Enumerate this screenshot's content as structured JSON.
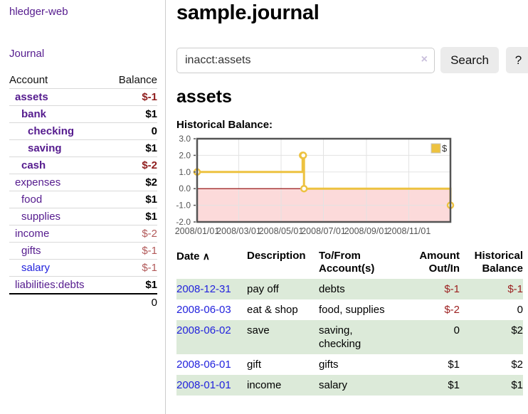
{
  "app": {
    "brand": "hledger-web"
  },
  "sidebar": {
    "nav_journal": "Journal",
    "table": {
      "account_header": "Account",
      "balance_header": "Balance",
      "accounts": [
        {
          "name": "assets",
          "balance": "$-1"
        },
        {
          "name": "bank",
          "balance": "$1"
        },
        {
          "name": "checking",
          "balance": "0"
        },
        {
          "name": "saving",
          "balance": "$1"
        },
        {
          "name": "cash",
          "balance": "$-2"
        },
        {
          "name": "expenses",
          "balance": "$2"
        },
        {
          "name": "food",
          "balance": "$1"
        },
        {
          "name": "supplies",
          "balance": "$1"
        },
        {
          "name": "income",
          "balance": "$-2"
        },
        {
          "name": "gifts",
          "balance": "$-1"
        },
        {
          "name": "salary",
          "balance": "$-1"
        },
        {
          "name": "liabilities:debts",
          "balance": "$1"
        }
      ],
      "total": "0"
    }
  },
  "main": {
    "title": "sample.journal",
    "search": {
      "value": "inacct:assets",
      "clear_icon": "×",
      "search_button": "Search",
      "help_button": "?"
    },
    "account_heading": "assets",
    "chart_label": "Historical Balance:"
  },
  "chart_data": {
    "type": "line",
    "step": true,
    "title": "Historical Balance",
    "ylim": [
      -2,
      3
    ],
    "yticks": [
      {
        "v": 3,
        "label": "3.0"
      },
      {
        "v": 2,
        "label": "2.0"
      },
      {
        "v": 1,
        "label": "1.0"
      },
      {
        "v": 0,
        "label": "0.0"
      },
      {
        "v": -1,
        "label": "-1.0"
      },
      {
        "v": -2,
        "label": "-2.0"
      }
    ],
    "xlim_days": [
      0,
      365
    ],
    "xticks": [
      {
        "day": 0,
        "label": "2008/01/01"
      },
      {
        "day": 60,
        "label": "2008/03/01"
      },
      {
        "day": 121,
        "label": "2008/05/01"
      },
      {
        "day": 182,
        "label": "2008/07/01"
      },
      {
        "day": 244,
        "label": "2008/09/01"
      },
      {
        "day": 305,
        "label": "2008/11/01"
      }
    ],
    "series": [
      {
        "name": "$",
        "color": "#edc240",
        "points": [
          {
            "date": "2008-01-01",
            "day": 0,
            "y": 1
          },
          {
            "date": "2008-06-01",
            "day": 152,
            "y": 2
          },
          {
            "date": "2008-06-02",
            "day": 153,
            "y": 2
          },
          {
            "date": "2008-06-03",
            "day": 154,
            "y": 0
          },
          {
            "date": "2008-12-31",
            "day": 365,
            "y": -1
          }
        ]
      }
    ],
    "legend": {
      "label": "$",
      "position": "top-right"
    },
    "grid": true,
    "grid_color": "#e3e3e3",
    "zero_line_color": "#8b0000",
    "negative_region_color": "#fcdada",
    "border_color": "#545454",
    "tick_label_color": "#545454"
  },
  "register": {
    "headers": {
      "date": "Date",
      "sort_icon": "∧",
      "description": "Description",
      "accounts": "To/From Account(s)",
      "amount": "Amount Out/In",
      "balance": "Historical Balance"
    },
    "rows": [
      {
        "date": "2008-12-31",
        "description": "pay off",
        "accounts": "debts",
        "amount": "$-1",
        "balance": "$-1"
      },
      {
        "date": "2008-06-03",
        "description": "eat & shop",
        "accounts": "food, supplies",
        "amount": "$-2",
        "balance": "0"
      },
      {
        "date": "2008-06-02",
        "description": "save",
        "accounts": "saving,\nchecking",
        "amount": "0",
        "balance": "$2"
      },
      {
        "date": "2008-06-01",
        "description": "gift",
        "accounts": "gifts",
        "amount": "$1",
        "balance": "$2"
      },
      {
        "date": "2008-01-01",
        "description": "income",
        "accounts": "salary",
        "amount": "$1",
        "balance": "$1"
      }
    ]
  },
  "colors": {
    "link_purple": "#551b8e",
    "link_blue": "#2222dd",
    "negative_strong": "#8f1d1d",
    "negative_muted": "#b25959",
    "row_stripe_green": "#dcead9",
    "series_yellow": "#edc240"
  }
}
